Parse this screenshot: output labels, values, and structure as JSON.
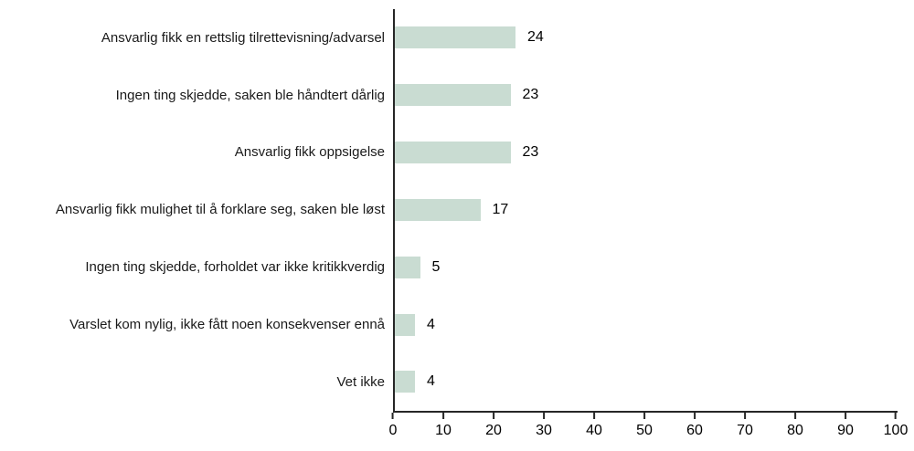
{
  "chart_data": {
    "type": "bar",
    "orientation": "horizontal",
    "title": "",
    "xlabel": "",
    "ylabel": "",
    "categories": [
      "Ansvarlig fikk en rettslig tilrettevisning/advarsel",
      "Ingen ting skjedde, saken ble håndtert dårlig",
      "Ansvarlig fikk oppsigelse",
      "Ansvarlig fikk mulighet til å forklare seg, saken ble løst",
      "Ingen ting skjedde, forholdet var ikke kritikkverdig",
      "Varslet kom nylig, ikke fått noen konsekvenser ennå",
      "Vet ikke"
    ],
    "values": [
      24,
      23,
      23,
      17,
      5,
      4,
      4
    ],
    "value_labels": true,
    "xlim": [
      0,
      100
    ],
    "xticks": [
      0,
      10,
      20,
      30,
      40,
      50,
      60,
      70,
      80,
      90,
      100
    ],
    "grid": false,
    "legend": null,
    "bar_color": "#c9dcd2",
    "axis_color": "#262626",
    "background_color": "#ffffff"
  }
}
